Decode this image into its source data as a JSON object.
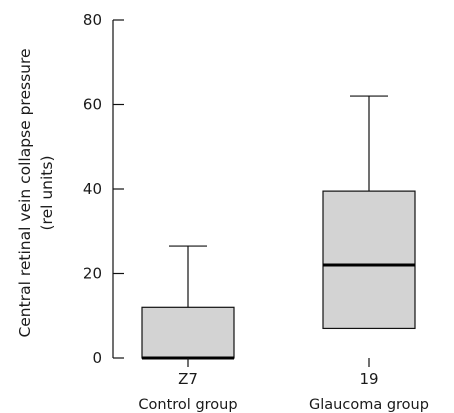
{
  "chart_data": {
    "type": "boxplot",
    "title": "",
    "ylabel_lines": [
      "Central retinal vein collapse pressure",
      "(rel units)"
    ],
    "xlabel": "",
    "ylim": [
      0,
      80
    ],
    "yticks": [
      0,
      20,
      40,
      60,
      80
    ],
    "grid": false,
    "box_color": "#d3d3d3",
    "categories": [
      {
        "count_label": "Z7",
        "label": "Control group",
        "min": 0,
        "q1": 0,
        "median": 0,
        "q3": 12,
        "max": 26.5
      },
      {
        "count_label": "19",
        "label": "Glaucoma group",
        "min": 7,
        "q1": 7,
        "median": 22,
        "q3": 39.5,
        "max": 62
      }
    ]
  }
}
